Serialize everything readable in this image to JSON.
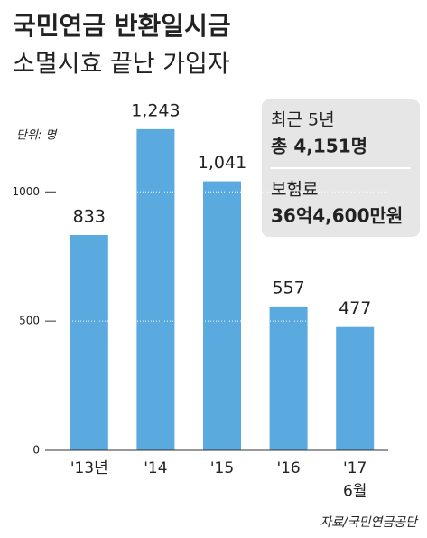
{
  "chart_data": {
    "type": "bar",
    "title": "국민연금 반환일시금",
    "subtitle": "소멸시효 끝난 가입자",
    "unit": "단위: 명",
    "categories": [
      "'13년",
      "'14",
      "'15",
      "'16",
      "'17\n6월"
    ],
    "values": [
      833,
      1243,
      1041,
      557,
      477
    ],
    "value_labels": [
      "833",
      "1,243",
      "1,041",
      "557",
      "477"
    ],
    "color": "#5aaae0",
    "ylim": [
      0,
      1400
    ],
    "yticks": [
      0,
      500,
      1000
    ],
    "grid": true,
    "annotations": [
      "최근 5년",
      "총 4,151명",
      "보험료",
      "36억4,600만원"
    ],
    "source": "자료/국민연금공단"
  }
}
